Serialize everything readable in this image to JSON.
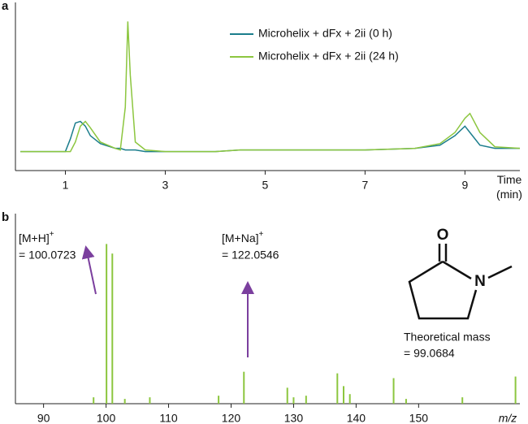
{
  "chart_data": [
    {
      "type": "line",
      "panel": "a",
      "xlabel": [
        "Time",
        "(min)"
      ],
      "x": [
        0.1,
        0.5,
        1.0,
        1.1,
        1.2,
        1.3,
        1.4,
        1.5,
        1.7,
        2.0,
        2.1,
        2.2,
        2.25,
        2.3,
        2.4,
        2.6,
        3,
        4,
        4.5,
        5,
        6,
        7,
        8,
        8.5,
        8.8,
        9.0,
        9.1,
        9.3,
        9.6,
        10.1
      ],
      "series": [
        {
          "name": "Microhelix + dFx + 2ii (0 h)",
          "color": "#1b7d8c",
          "values": [
            12,
            12,
            12,
            20,
            30,
            31,
            28,
            22,
            17,
            14,
            14,
            13,
            13,
            13,
            13,
            12,
            12,
            12,
            13,
            13,
            13,
            13,
            14,
            16,
            22,
            28,
            24,
            16,
            14,
            14
          ]
        },
        {
          "name": "Microhelix + dFx + 2ii (24 h)",
          "color": "#8cc63f",
          "values": [
            12,
            12,
            12,
            12,
            18,
            28,
            31,
            27,
            18,
            14,
            13,
            40,
            94,
            60,
            18,
            13,
            12,
            12,
            13,
            13,
            13,
            13,
            14,
            17,
            24,
            33,
            36,
            24,
            15,
            14
          ]
        }
      ],
      "xlim": [
        0,
        10.1
      ],
      "xticks": [
        1,
        3,
        5,
        7,
        9
      ],
      "ylim": [
        0,
        106
      ]
    },
    {
      "type": "bar",
      "panel": "b",
      "xlabel": "m/z",
      "color": "#8cc63f",
      "x": [
        98,
        100.07,
        101,
        103,
        107,
        118,
        122.05,
        129,
        130,
        132,
        137,
        138,
        139,
        146,
        148,
        157,
        165.5
      ],
      "values": [
        4,
        100,
        94,
        3,
        4,
        5,
        20,
        10,
        4,
        5,
        19,
        11,
        6,
        16,
        3,
        4,
        17
      ],
      "xlim": [
        85.5,
        166.2
      ],
      "xticks": [
        90,
        100,
        110,
        120,
        130,
        140,
        150
      ],
      "ylim": [
        0,
        119
      ],
      "annotations": [
        {
          "text": "[M+H]",
          "sup": "+",
          "mass": "= 100.0723"
        },
        {
          "text": "[M+Na]",
          "sup": "+",
          "mass": "= 122.0546"
        }
      ],
      "structure": {
        "atoms": [
          "O",
          "N"
        ],
        "caption": [
          "Theoretical mass",
          "= 99.0684"
        ]
      }
    }
  ]
}
